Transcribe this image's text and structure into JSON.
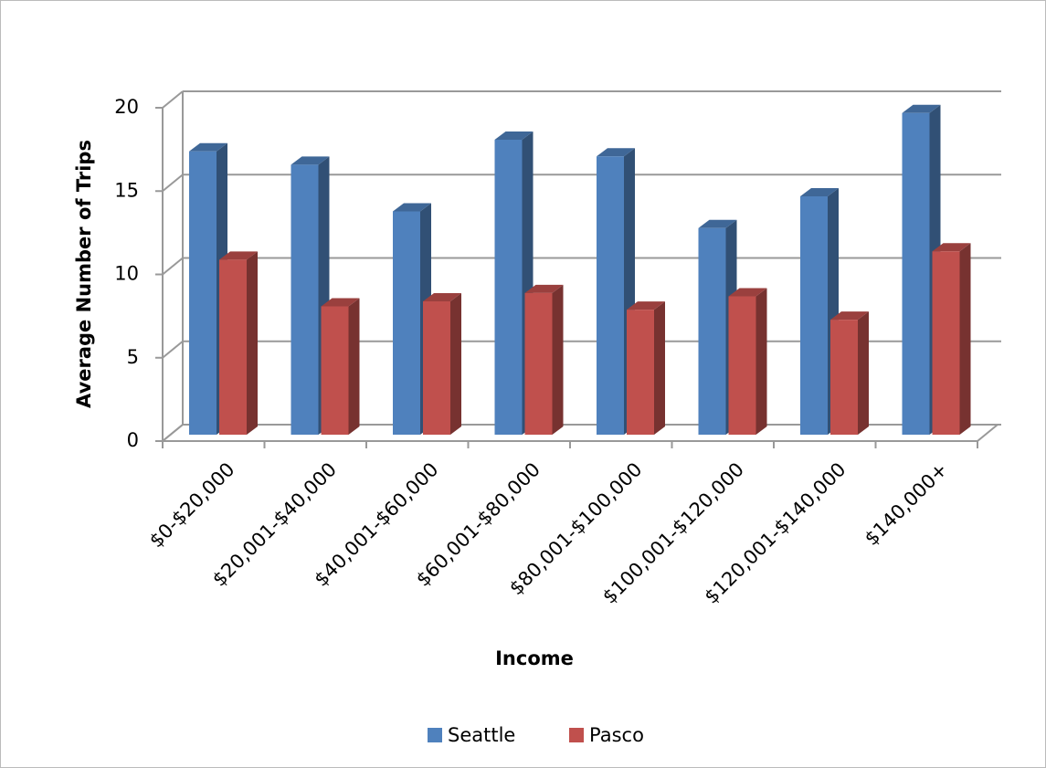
{
  "chart_data": {
    "type": "bar3d",
    "categories": [
      "$0-$20,000",
      "$20,001-$40,000",
      "$40,001-$60,000",
      "$60,001-$80,000",
      "$80,001-$100,000",
      "$100,001-$120,000",
      "$120,001-$140,000",
      "$140,000+"
    ],
    "series": [
      {
        "name": "Seattle",
        "color": "#4f81bd",
        "values": [
          17.0,
          16.2,
          13.4,
          17.7,
          16.7,
          12.4,
          14.3,
          19.3
        ]
      },
      {
        "name": "Pasco",
        "color": "#c0504d",
        "values": [
          10.5,
          7.7,
          8.0,
          8.5,
          7.5,
          8.3,
          6.9,
          11.0
        ]
      }
    ],
    "xlabel": "Income",
    "ylabel": "Average Number of Trips",
    "ylim": [
      0,
      20
    ],
    "yticks": [
      0,
      5,
      10,
      15,
      20
    ],
    "grid": true,
    "legend": "bottom"
  }
}
